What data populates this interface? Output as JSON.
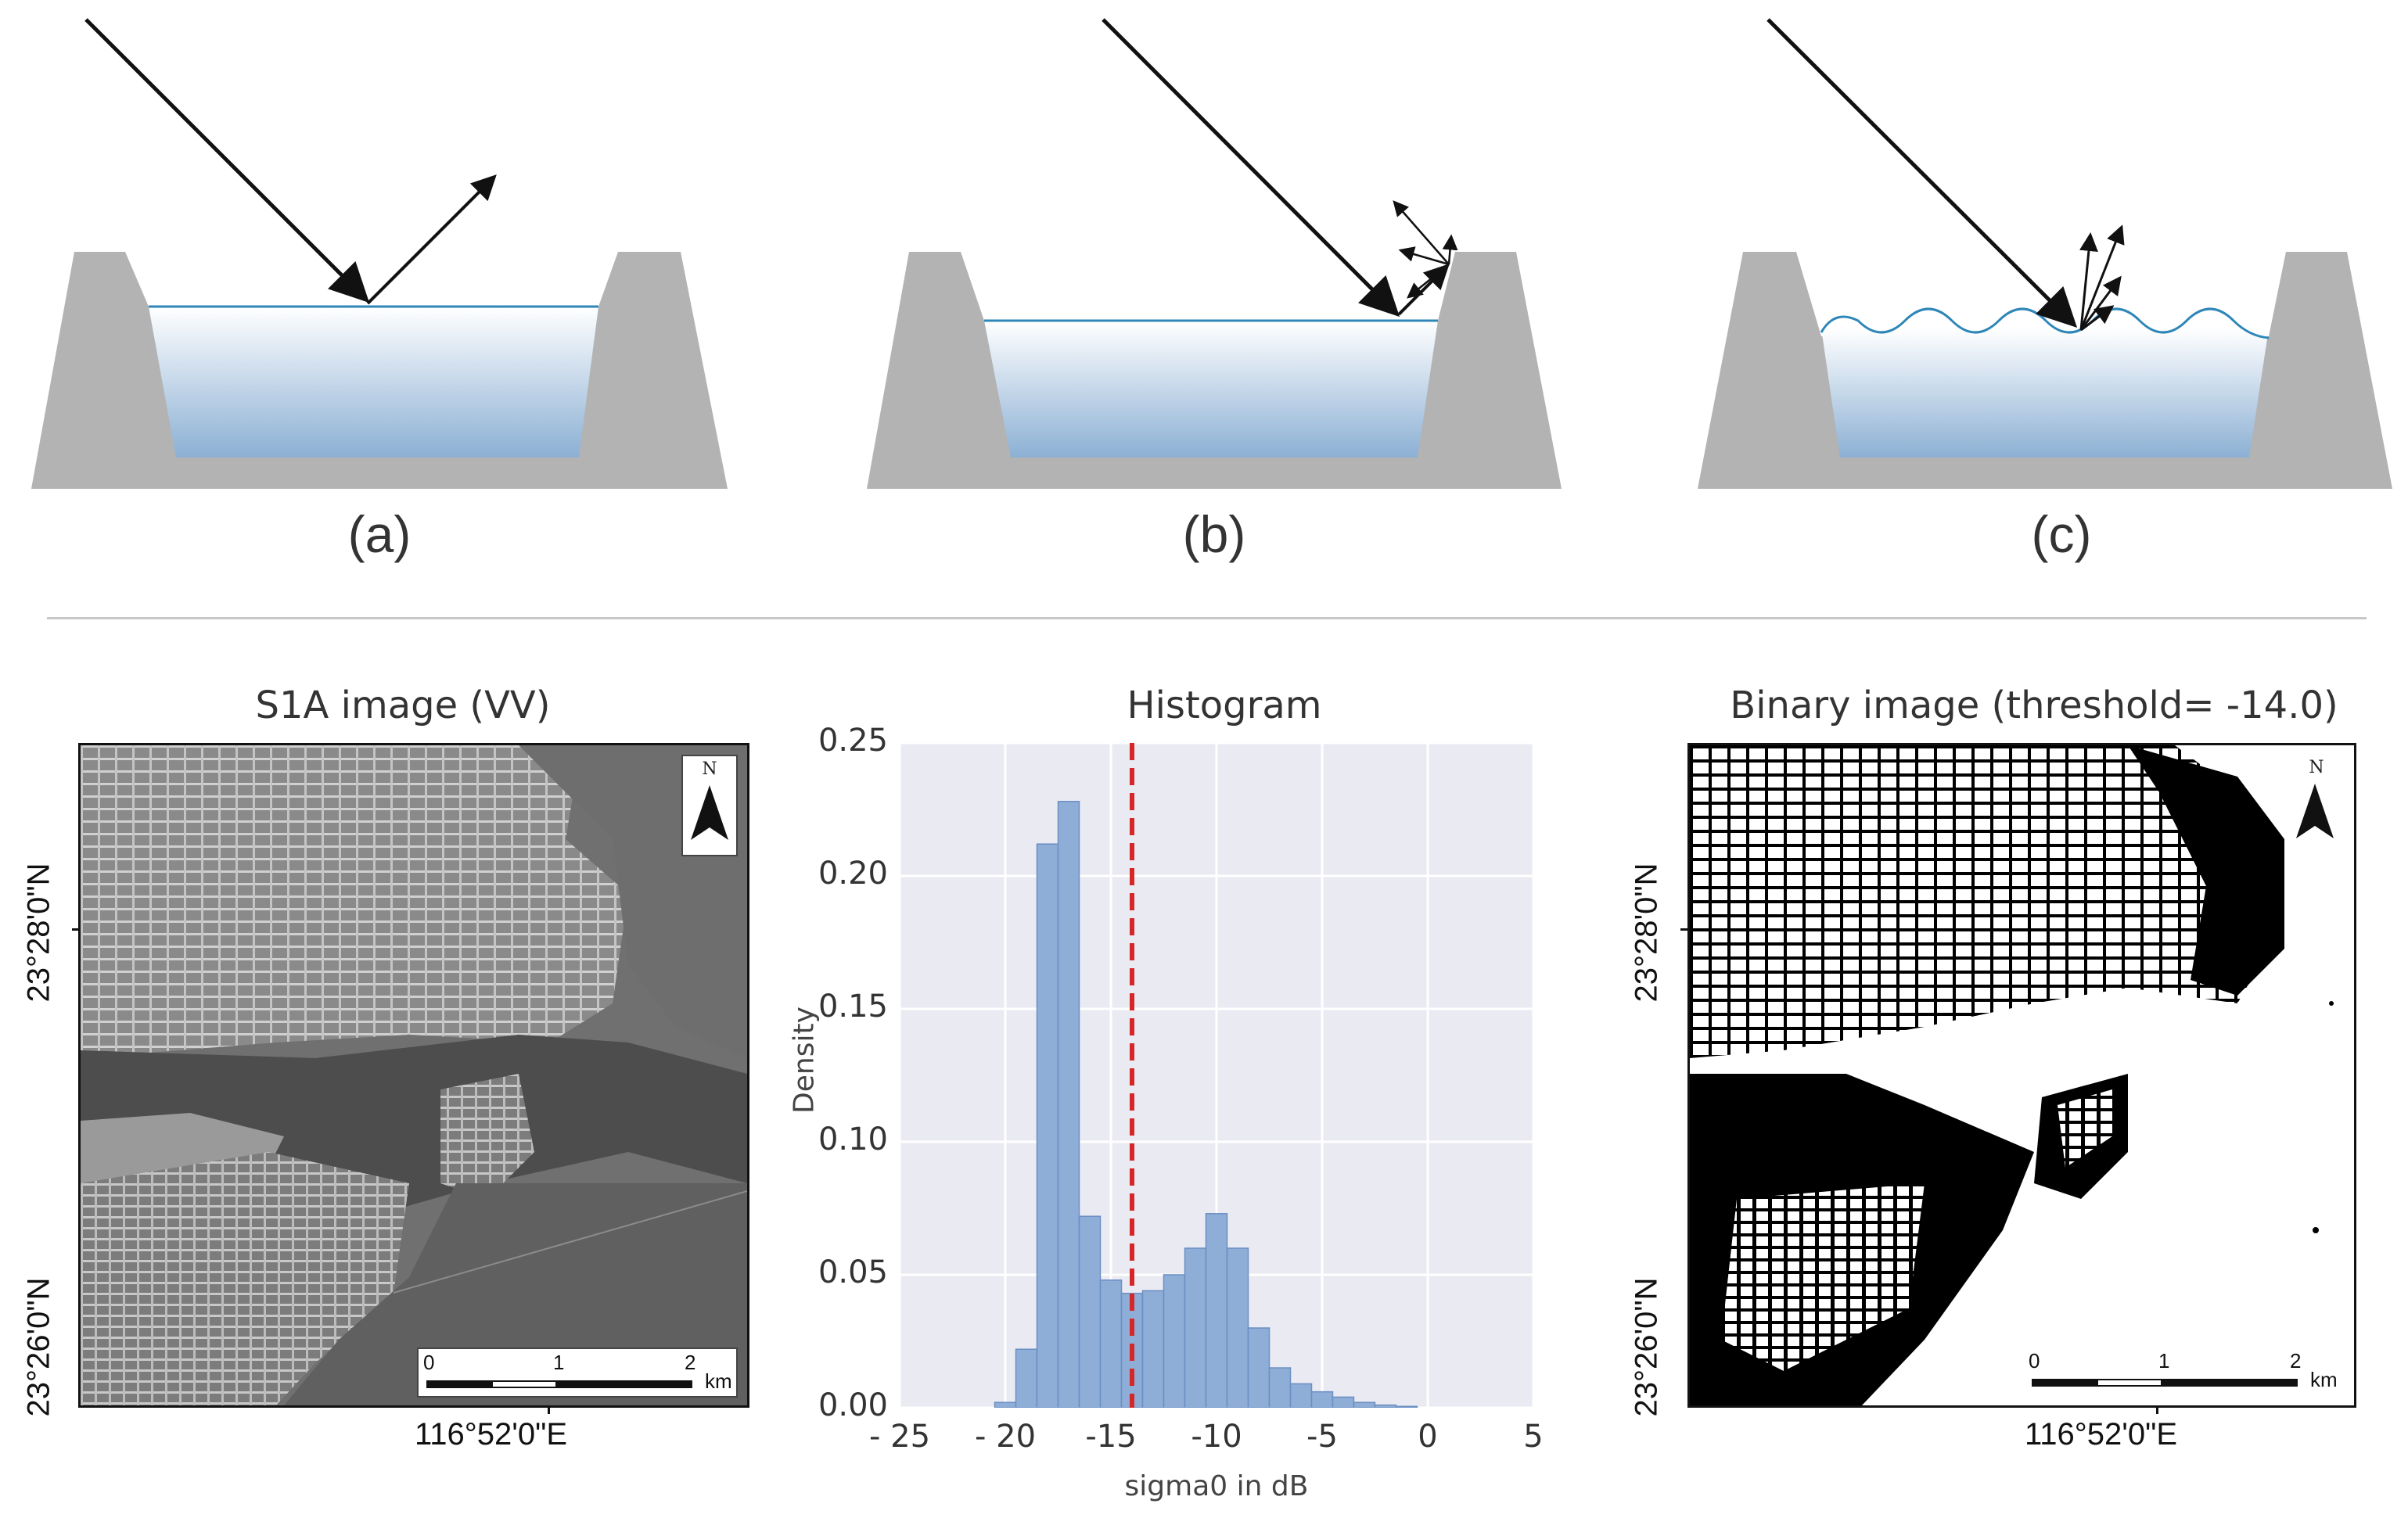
{
  "schematic": {
    "panels": [
      {
        "label": "(a)",
        "reflection": "specular"
      },
      {
        "label": "(b)",
        "reflection": "double-bounce"
      },
      {
        "label": "(c)",
        "reflection": "diffuse"
      }
    ],
    "colors": {
      "bank": "#b3b3b3",
      "water_top": "#ffffff",
      "water_bottom": "#8cb0d4",
      "water_line": "#2e86b8",
      "ray": "#111111"
    }
  },
  "s1a_image": {
    "title": "S1A image (VV)",
    "lat_top": "23°28'0\"N",
    "lat_bottom": "23°26'0\"N",
    "lon": "116°52'0\"E",
    "north": "N",
    "scale": {
      "t0": "0",
      "t1": "1",
      "t2": "2",
      "unit": "km"
    }
  },
  "histogram": {
    "title": "Histogram",
    "xlabel": "sigma0 in dB",
    "ylabel": "Density",
    "xticks": [
      "- 25",
      "- 20",
      "-15",
      "-10",
      "-5",
      "0",
      "5"
    ],
    "yticks": [
      "0.00",
      "0.05",
      "0.10",
      "0.15",
      "0.20",
      "0.25"
    ]
  },
  "binary_image": {
    "title": "Binary image (threshold= -14.0)",
    "lat_top": "23°28'0\"N",
    "lat_bottom": "23°26'0\"N",
    "lon": "116°52'0\"E",
    "north": "N",
    "scale": {
      "t0": "0",
      "t1": "1",
      "t2": "2",
      "unit": "km"
    }
  },
  "chart_data": {
    "type": "bar",
    "title": "Histogram",
    "xlabel": "sigma0 in dB",
    "ylabel": "Density",
    "xlim": [
      -25,
      5
    ],
    "ylim": [
      0,
      0.25
    ],
    "grid": true,
    "bin_edges": [
      -20.5,
      -19.5,
      -18.5,
      -17.5,
      -16.5,
      -15.5,
      -14.5,
      -13.5,
      -12.5,
      -11.5,
      -10.5,
      -9.5,
      -8.5,
      -7.5,
      -6.5,
      -5.5,
      -4.5,
      -3.5,
      -2.5,
      -1.5,
      -0.5
    ],
    "values": [
      0.002,
      0.022,
      0.212,
      0.228,
      0.072,
      0.048,
      0.043,
      0.044,
      0.05,
      0.06,
      0.073,
      0.06,
      0.03,
      0.015,
      0.009,
      0.006,
      0.004,
      0.002,
      0.001,
      0.0005
    ],
    "threshold": -14.0,
    "colors": {
      "bar": "#8eadd7",
      "bar_edge": "#6a8fc4",
      "threshold": "#d62728",
      "background": "#eaeaf2",
      "grid": "#ffffff"
    }
  }
}
